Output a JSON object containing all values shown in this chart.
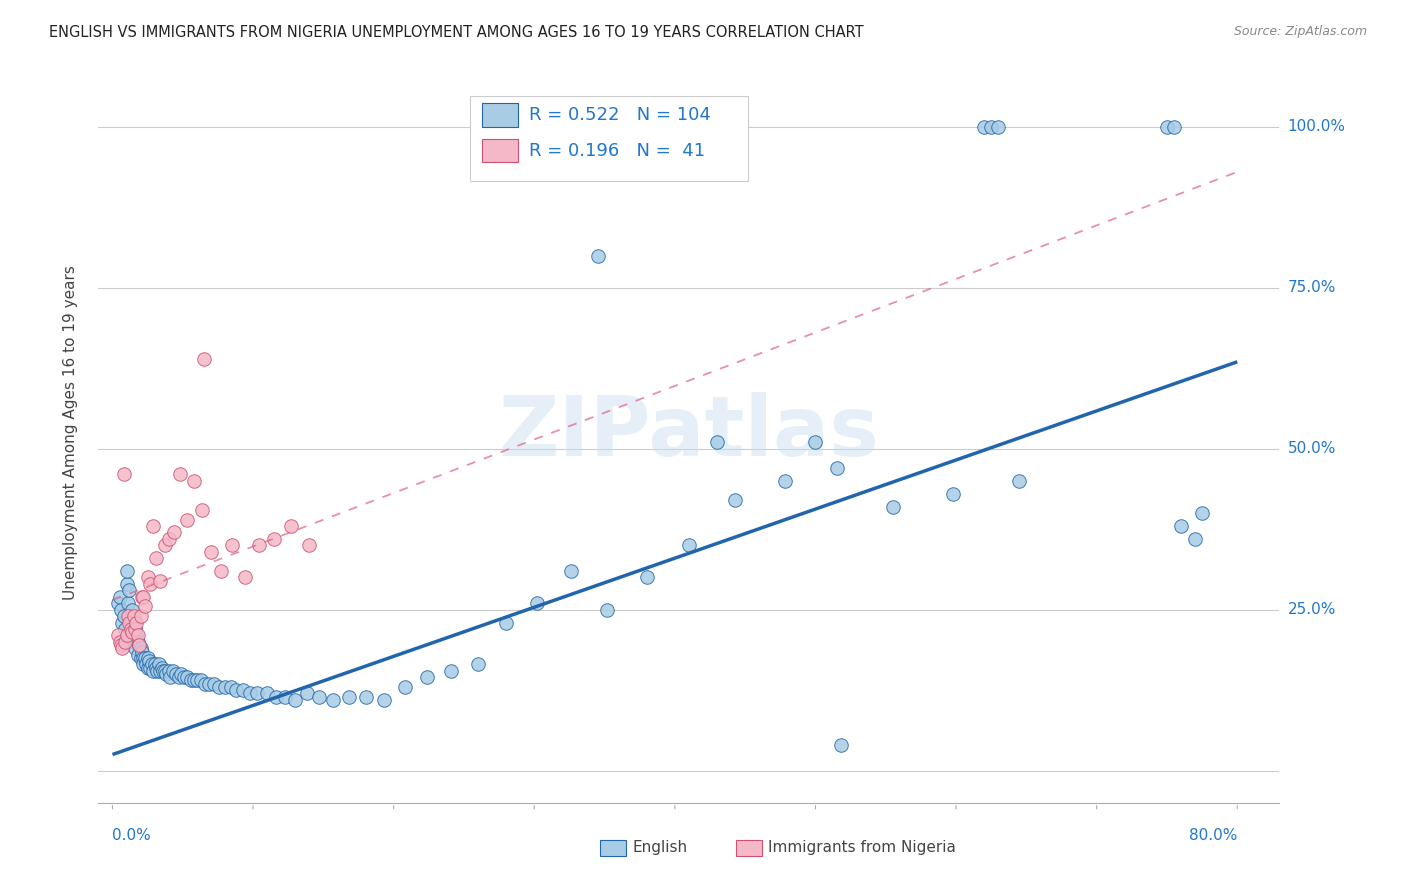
{
  "title": "ENGLISH VS IMMIGRANTS FROM NIGERIA UNEMPLOYMENT AMONG AGES 16 TO 19 YEARS CORRELATION CHART",
  "source": "Source: ZipAtlas.com",
  "ylabel": "Unemployment Among Ages 16 to 19 years",
  "xmin": 0.0,
  "xmax": 0.8,
  "ymin": 0.0,
  "ymax": 1.05,
  "english_R": 0.522,
  "english_N": 104,
  "nigeria_R": 0.196,
  "nigeria_N": 41,
  "english_color": "#a8cce4",
  "nigeria_color": "#f4b8c8",
  "english_line_color": "#2166ac",
  "nigeria_line_color": "#e06080",
  "watermark": "ZIPatlas",
  "en_line_x0": 0.0,
  "en_line_y0": 0.025,
  "en_line_x1": 0.8,
  "en_line_y1": 0.635,
  "ni_line_x0": 0.0,
  "ni_line_y0": 0.265,
  "ni_line_x1": 0.8,
  "ni_line_y1": 0.93,
  "english_x": [
    0.004,
    0.005,
    0.006,
    0.007,
    0.008,
    0.009,
    0.01,
    0.01,
    0.011,
    0.012,
    0.012,
    0.013,
    0.014,
    0.014,
    0.015,
    0.015,
    0.016,
    0.016,
    0.017,
    0.018,
    0.018,
    0.019,
    0.02,
    0.02,
    0.021,
    0.022,
    0.022,
    0.023,
    0.024,
    0.025,
    0.025,
    0.026,
    0.027,
    0.028,
    0.029,
    0.03,
    0.031,
    0.032,
    0.033,
    0.034,
    0.035,
    0.036,
    0.037,
    0.038,
    0.04,
    0.041,
    0.043,
    0.045,
    0.047,
    0.049,
    0.051,
    0.053,
    0.056,
    0.058,
    0.06,
    0.063,
    0.066,
    0.069,
    0.072,
    0.076,
    0.08,
    0.084,
    0.088,
    0.093,
    0.098,
    0.103,
    0.11,
    0.116,
    0.123,
    0.13,
    0.138,
    0.147,
    0.157,
    0.168,
    0.18,
    0.193,
    0.208,
    0.224,
    0.241,
    0.26,
    0.28,
    0.302,
    0.326,
    0.352,
    0.38,
    0.41,
    0.443,
    0.478,
    0.515,
    0.555,
    0.598,
    0.645,
    0.62,
    0.625,
    0.63,
    0.75,
    0.755,
    0.76,
    0.77,
    0.775,
    0.345,
    0.43,
    0.5,
    0.518
  ],
  "english_y": [
    0.26,
    0.27,
    0.25,
    0.23,
    0.24,
    0.22,
    0.29,
    0.31,
    0.26,
    0.24,
    0.28,
    0.23,
    0.25,
    0.21,
    0.2,
    0.23,
    0.22,
    0.19,
    0.21,
    0.2,
    0.18,
    0.195,
    0.19,
    0.175,
    0.185,
    0.175,
    0.165,
    0.175,
    0.165,
    0.175,
    0.16,
    0.17,
    0.16,
    0.165,
    0.155,
    0.165,
    0.16,
    0.155,
    0.165,
    0.155,
    0.16,
    0.155,
    0.155,
    0.15,
    0.155,
    0.145,
    0.155,
    0.15,
    0.145,
    0.15,
    0.145,
    0.145,
    0.14,
    0.14,
    0.14,
    0.14,
    0.135,
    0.135,
    0.135,
    0.13,
    0.13,
    0.13,
    0.125,
    0.125,
    0.12,
    0.12,
    0.12,
    0.115,
    0.115,
    0.11,
    0.12,
    0.115,
    0.11,
    0.115,
    0.115,
    0.11,
    0.13,
    0.145,
    0.155,
    0.165,
    0.23,
    0.26,
    0.31,
    0.25,
    0.3,
    0.35,
    0.42,
    0.45,
    0.47,
    0.41,
    0.43,
    0.45,
    1.0,
    1.0,
    1.0,
    1.0,
    1.0,
    0.38,
    0.36,
    0.4,
    0.8,
    0.51,
    0.51,
    0.04
  ],
  "nigeria_x": [
    0.004,
    0.005,
    0.006,
    0.007,
    0.008,
    0.009,
    0.01,
    0.011,
    0.012,
    0.013,
    0.014,
    0.015,
    0.016,
    0.017,
    0.018,
    0.019,
    0.02,
    0.021,
    0.022,
    0.023,
    0.025,
    0.027,
    0.029,
    0.031,
    0.034,
    0.037,
    0.04,
    0.044,
    0.048,
    0.053,
    0.058,
    0.064,
    0.07,
    0.077,
    0.085,
    0.094,
    0.104,
    0.115,
    0.127,
    0.14,
    0.065
  ],
  "nigeria_y": [
    0.21,
    0.2,
    0.195,
    0.19,
    0.46,
    0.2,
    0.21,
    0.24,
    0.23,
    0.22,
    0.215,
    0.24,
    0.22,
    0.23,
    0.21,
    0.195,
    0.24,
    0.27,
    0.27,
    0.255,
    0.3,
    0.29,
    0.38,
    0.33,
    0.295,
    0.35,
    0.36,
    0.37,
    0.46,
    0.39,
    0.45,
    0.405,
    0.34,
    0.31,
    0.35,
    0.3,
    0.35,
    0.36,
    0.38,
    0.35,
    0.64
  ]
}
